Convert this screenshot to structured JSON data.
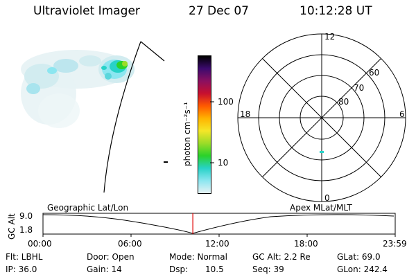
{
  "header": {
    "instrument": "Ultraviolet Imager",
    "date": "27 Dec 07",
    "time": "10:12:28 UT"
  },
  "colorbar": {
    "unit_label": "photon cm⁻²s⁻¹",
    "ticks": [
      "100",
      "10"
    ],
    "colors": [
      "#000000",
      "#3c0a6e",
      "#8b1060",
      "#c8102e",
      "#ff5a00",
      "#ffb400",
      "#f5e628",
      "#9bdc28",
      "#2ad22a",
      "#28d2c8",
      "#8ce6f0",
      "#e6f2f4"
    ]
  },
  "polar_plot": {
    "mlt_labels": {
      "top": "12",
      "bottom": "0",
      "left": "18",
      "right": "6"
    },
    "lat_labels": [
      "60",
      "70",
      "80"
    ]
  },
  "timeline": {
    "y_axis_label": "GC Alt",
    "y_ticks": [
      "9.0",
      "1.8"
    ],
    "left_title": "Geographic Lat/Lon",
    "right_title": "Apex MLat/MLT",
    "x_ticks": [
      "00:00",
      "06:00",
      "12:00",
      "18:00",
      "23:59"
    ],
    "current_marker_hours": 10.21,
    "marker_color": "#e00000"
  },
  "info": {
    "flt": "Flt: LBHL",
    "door": "Door: Open",
    "mode": "Mode: Normal",
    "gc_alt": "GC Alt: 2.2 Re",
    "glat": "GLat:  69.0",
    "ip": "IP: 36.0",
    "gain": "Gain: 14",
    "dsp_label": "Dsp:",
    "dsp_value": "10.5",
    "seq": "Seq: 39",
    "glon": "GLon: 242.4"
  }
}
